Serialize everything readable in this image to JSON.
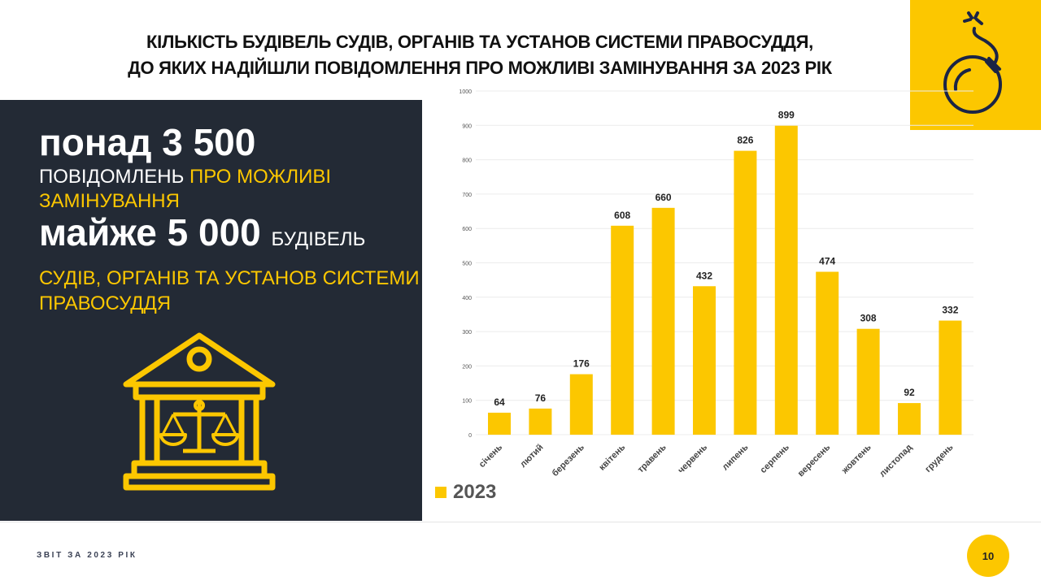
{
  "header": {
    "title_line1": "КІЛЬКІСТЬ БУДІВЕЛЬ СУДІВ, ОРГАНІВ ТА УСТАНОВ СИСТЕМИ ПРАВОСУДДЯ,",
    "title_line2": "ДО ЯКИХ НАДІЙШЛИ ПОВІДОМЛЕННЯ ПРО МОЖЛИВІ ЗАМІНУВАННЯ ЗА 2023 РІК",
    "icon": "bomb-icon"
  },
  "summary": {
    "stat1_big": "понад   3 500",
    "stat1_white": "ПОВІДОМЛЕНЬ ",
    "stat1_yellow_a": "ПРО МОЖЛИВІ",
    "stat1_yellow_b": "ЗАМІНУВАННЯ",
    "stat2_big": "майже 5 000 ",
    "stat2_white": "БУДІВЕЛЬ",
    "stat2_yellow_a": "СУДІВ, ОРГАНІВ ТА УСТАНОВ СИСТЕМИ",
    "stat2_yellow_b": "ПРАВОСУДДЯ",
    "icon": "courthouse-scales-icon"
  },
  "chart_data": {
    "type": "bar",
    "categories": [
      "січень",
      "лютий",
      "березень",
      "квітень",
      "травень",
      "червень",
      "липень",
      "серпень",
      "вересень",
      "жовтень",
      "листопад",
      "грудень"
    ],
    "series": [
      {
        "name": "2023",
        "values": [
          64,
          76,
          176,
          608,
          660,
          432,
          826,
          899,
          474,
          308,
          92,
          332
        ],
        "color": "#fcc700"
      }
    ],
    "ylim": [
      0,
      1000
    ],
    "yticks": [
      0,
      100,
      200,
      300,
      400,
      500,
      600,
      700,
      800,
      900,
      1000
    ],
    "grid": true,
    "legend": "bottom-left",
    "data_labels": true
  },
  "footer": {
    "report": "ЗВІТ ЗА 2023 РІК",
    "page": "10"
  },
  "colors": {
    "accent": "#fcc700",
    "panel": "#232a35"
  }
}
